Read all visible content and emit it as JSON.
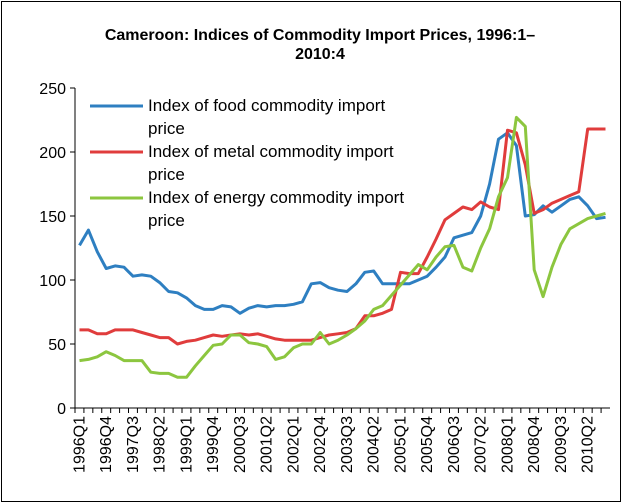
{
  "chart_data": {
    "type": "line",
    "title": "Cameroon: Indices of Commodity Import Prices, 1996:1–2010:4",
    "categories": [
      "1996Q1",
      null,
      null,
      "1996Q4",
      null,
      null,
      "1997Q3",
      null,
      null,
      "1998Q2",
      null,
      null,
      "1999Q1",
      null,
      null,
      "1999Q4",
      null,
      null,
      "2000Q3",
      null,
      null,
      "2001Q2",
      null,
      null,
      "2002Q1",
      null,
      null,
      "2002Q4",
      null,
      null,
      "2003Q3",
      null,
      null,
      "2004Q2",
      null,
      null,
      "2005Q1",
      null,
      null,
      "2005Q4",
      null,
      null,
      "2006Q3",
      null,
      null,
      "2007Q2",
      null,
      null,
      "2008Q1",
      null,
      null,
      "2008Q4",
      null,
      null,
      "2009Q3",
      null,
      null,
      "2010Q2",
      null,
      null
    ],
    "series": [
      {
        "name": "Index of food commodity import price",
        "color": "#2e7fc1",
        "values": [
          127,
          139,
          122,
          109,
          111,
          110,
          103,
          104,
          103,
          98,
          91,
          90,
          86,
          80,
          77,
          77,
          80,
          79,
          74,
          78,
          80,
          79,
          80,
          80,
          81,
          83,
          97,
          98,
          94,
          92,
          91,
          97,
          106,
          107,
          97,
          97,
          97,
          97,
          100,
          103,
          110,
          118,
          133,
          135,
          137,
          150,
          175,
          210,
          215,
          205,
          150,
          151,
          158,
          153,
          158,
          163,
          165,
          158,
          148,
          149
        ]
      },
      {
        "name": "Index of metal commodity import price",
        "color": "#e03c3c",
        "values": [
          61,
          61,
          58,
          58,
          61,
          61,
          61,
          59,
          57,
          55,
          55,
          50,
          52,
          53,
          55,
          57,
          56,
          57,
          58,
          57,
          58,
          56,
          54,
          53,
          53,
          53,
          53,
          55,
          57,
          58,
          59,
          62,
          72,
          72,
          74,
          77,
          106,
          105,
          105,
          118,
          132,
          147,
          152,
          157,
          155,
          161,
          157,
          155,
          217,
          215,
          190,
          152,
          155,
          160,
          163,
          166,
          169,
          218,
          218,
          218
        ]
      },
      {
        "name": "Index of energy commodity import price",
        "color": "#8cc63f",
        "values": [
          37,
          38,
          40,
          44,
          41,
          37,
          37,
          37,
          28,
          27,
          27,
          24,
          24,
          33,
          41,
          49,
          50,
          57,
          57,
          51,
          50,
          48,
          38,
          40,
          47,
          50,
          50,
          59,
          50,
          53,
          57,
          62,
          68,
          77,
          80,
          88,
          96,
          104,
          112,
          108,
          118,
          126,
          127,
          110,
          107,
          125,
          140,
          165,
          180,
          227,
          220,
          108,
          87,
          110,
          128,
          140,
          144,
          148,
          150,
          152
        ]
      }
    ],
    "ylim": [
      0,
      250
    ],
    "yticks": [
      0,
      50,
      100,
      150,
      200,
      250
    ]
  }
}
